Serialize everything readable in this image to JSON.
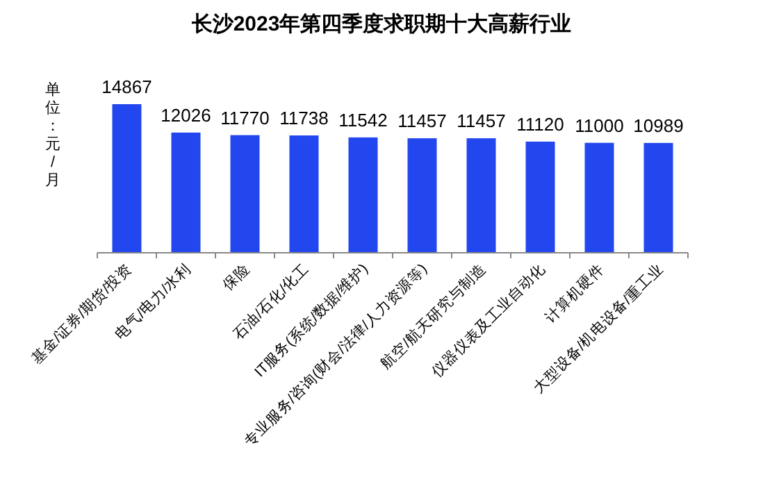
{
  "chart_data": {
    "type": "bar",
    "title": "长沙2023年第四季度求职期十大高薪行业",
    "ylabel": "单位：元/月",
    "categories": [
      "基金/证券/期货/投资",
      "电气/电力/水利",
      "保险",
      "石油/石化/化工",
      "IT服务(系统/数据/维护)",
      "专业服务/咨询(财会/法律/人力资源等)",
      "航空/航天研究与制造",
      "仪器仪表及工业自动化",
      "计算机硬件",
      "大型设备/机电设备/重工业"
    ],
    "values": [
      14867,
      12026,
      11770,
      11738,
      11542,
      11457,
      11457,
      11120,
      11000,
      10989
    ],
    "color": "#2347ee",
    "data_labels": true
  }
}
